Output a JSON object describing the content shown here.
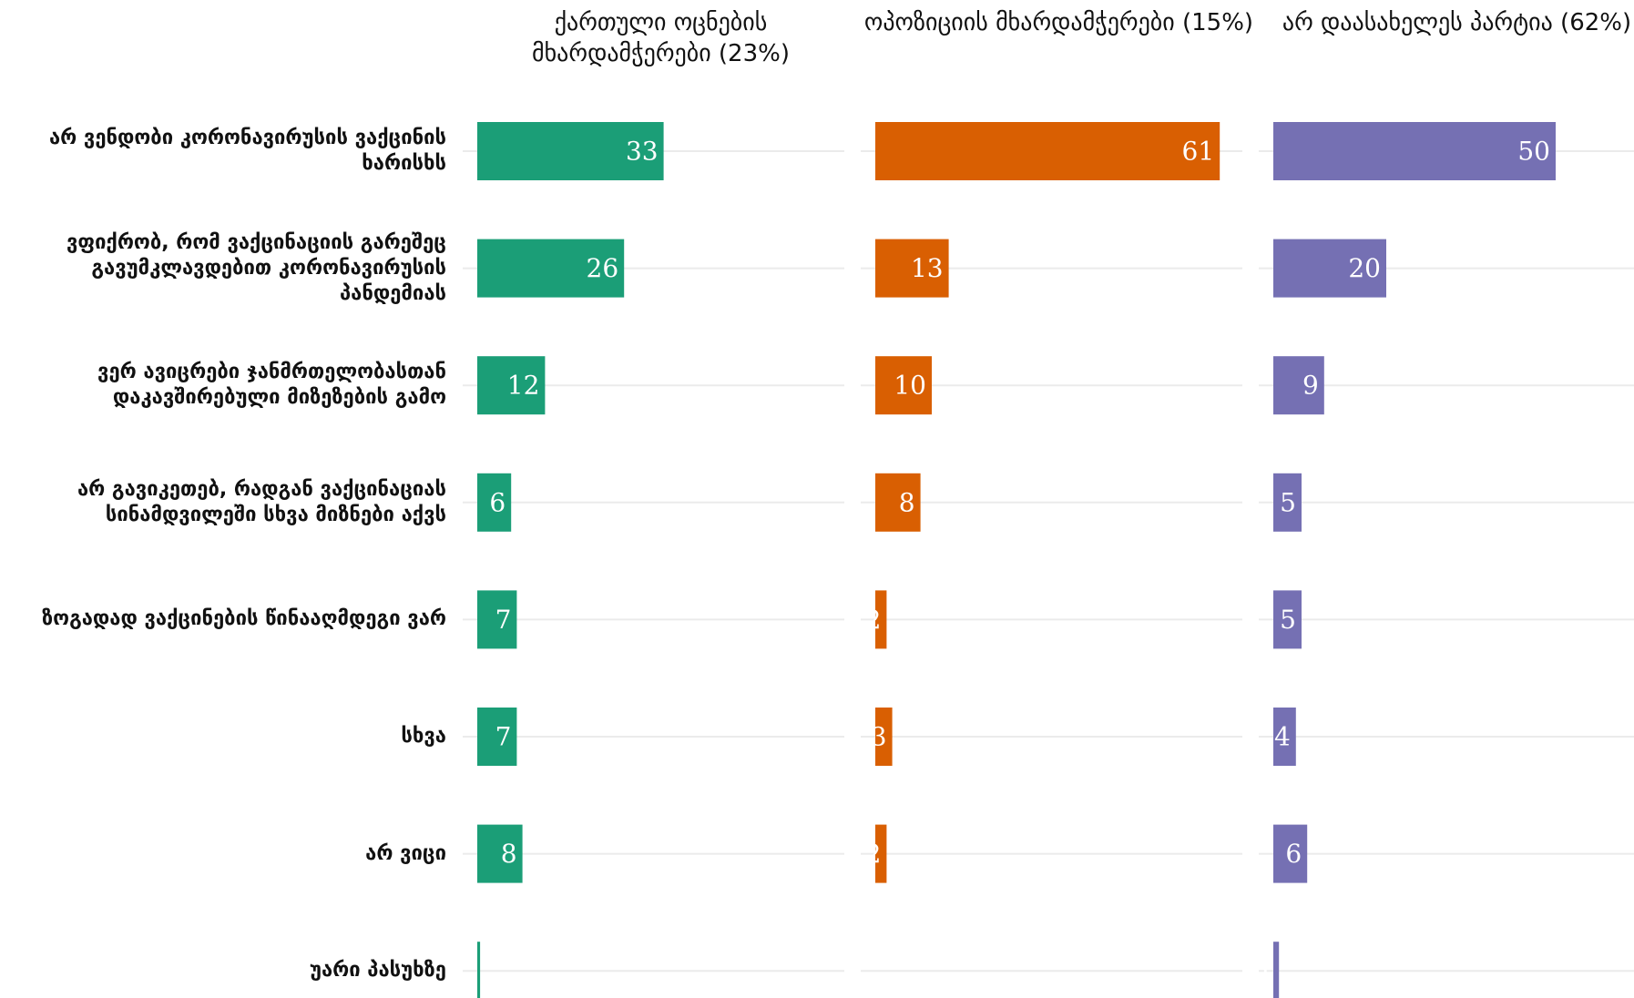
{
  "chart_data": {
    "type": "bar",
    "orientation": "horizontal",
    "categories": [
      "არ ვენდობი კორონავირუსის ვაქცინის ხარისხს",
      "ვფიქრობ, რომ ვაქცინაციის გარეშეც გავუმკლავდებით კორონავირუსის პანდემიას",
      "ვერ ავიცრები ჯანმრთელობასთან დაკავშირებული მიზეზების გამო",
      "არ გავიკეთებ, რადგან ვაქცინაციას სინამდვილეში სხვა მიზნები აქვს",
      "ზოგადად ვაქცინების წინააღმდეგი ვარ",
      "სხვა",
      "არ ვიცი",
      "უარი პასუხზე"
    ],
    "series": [
      {
        "name": "ქართული ოცნების მხარდამჭერები (23%)",
        "color": "#1b9e77",
        "values": [
          33,
          26,
          12,
          6,
          7,
          7,
          8,
          0.5
        ]
      },
      {
        "name": "ოპოზიციის მხარდამჭერები (15%)",
        "color": "#d95f02",
        "values": [
          61,
          13,
          10,
          8,
          2,
          3,
          2,
          null
        ]
      },
      {
        "name": "არ დაასახელეს პარტია (62%)",
        "color": "#7570b3",
        "values": [
          50,
          20,
          9,
          5,
          5,
          4,
          6,
          1
        ]
      }
    ],
    "xlim": [
      0,
      65
    ],
    "grid": true
  }
}
